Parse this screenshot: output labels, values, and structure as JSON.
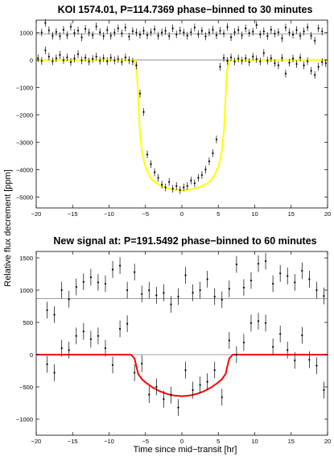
{
  "figure": {
    "ylabel": "Relative flux decrement [ppm]",
    "xlabel": "Time since mid−transit [hr]"
  },
  "colors": {
    "fit_top": "#ffff00",
    "fit_bottom": "#ff0000",
    "points": "#000000",
    "axes": "#000000",
    "reference": "#7f7f7f"
  },
  "chart_data": [
    {
      "type": "scatter",
      "title": "KOI 1574.01, P=114.7369 phase−binned to 30 minutes",
      "xlabel": "",
      "ylabel": "Relative flux decrement [ppm]",
      "xlim": [
        -20,
        20
      ],
      "ylim": [
        -5400,
        1450
      ],
      "xticks": [
        -20,
        -15,
        -10,
        -5,
        0,
        5,
        10,
        15,
        20
      ],
      "yticks": [
        -5000,
        -4000,
        -3000,
        -2000,
        -1000,
        0,
        1000
      ],
      "grid": false,
      "reference_lines": [
        0,
        950
      ],
      "error_bar": 140,
      "offset": 950,
      "series": [
        {
          "role": "upper-offset",
          "x": [
            -19.25,
            -18.75,
            -18.25,
            -17.75,
            -17.25,
            -16.75,
            -16.25,
            -15.75,
            -15.25,
            -14.75,
            -14.25,
            -13.75,
            -13.25,
            -12.75,
            -12.25,
            -11.75,
            -11.25,
            -10.75,
            -10.25,
            -9.75,
            -9.25,
            -8.75,
            -8.25,
            -7.75,
            -7.25,
            -6.75,
            -6.25,
            -5.75,
            -5.25,
            -4.75,
            -4.25,
            -3.75,
            -3.25,
            -2.75,
            -2.25,
            -1.75,
            -1.25,
            -0.75,
            -0.25,
            0.25,
            0.75,
            1.25,
            1.75,
            2.25,
            2.75,
            3.25,
            3.75,
            4.25,
            4.75,
            5.25,
            5.75,
            6.25,
            6.75,
            7.25,
            7.75,
            8.25,
            8.75,
            9.25,
            9.75,
            10.25,
            10.75,
            11.25,
            11.75,
            12.25,
            12.75,
            13.25,
            13.75,
            14.25,
            14.75,
            15.25,
            15.75,
            16.25,
            16.75,
            17.25,
            17.75,
            18.25,
            18.75,
            19.25
          ],
          "y": [
            1000,
            1350,
            1080,
            880,
            1020,
            870,
            1100,
            900,
            1210,
            980,
            1070,
            820,
            1130,
            1000,
            900,
            1220,
            1010,
            870,
            1090,
            880,
            1000,
            1150,
            970,
            1180,
            850,
            1050,
            1000,
            920,
            1060,
            900,
            1010,
            1120,
            880,
            1000,
            1060,
            870,
            1150,
            930,
            1070,
            1000,
            880,
            1010,
            1180,
            940,
            1060,
            860,
            1000,
            1100,
            900,
            1060,
            960,
            1200,
            830,
            1010,
            1090,
            890,
            1150,
            980,
            1030,
            1270,
            930,
            1040,
            870,
            1100,
            960,
            1010,
            790,
            1180,
            1000,
            920,
            1090,
            880,
            1040,
            1190,
            880,
            700,
            1150,
            1040
          ]
        },
        {
          "role": "lower",
          "x": [
            -19.75,
            -19.25,
            -18.75,
            -18.25,
            -17.75,
            -17.25,
            -16.75,
            -16.25,
            -15.75,
            -15.25,
            -14.75,
            -14.25,
            -13.75,
            -13.25,
            -12.75,
            -12.25,
            -11.75,
            -11.25,
            -10.75,
            -10.25,
            -9.75,
            -9.25,
            -8.75,
            -8.25,
            -7.75,
            -7.25,
            -6.75,
            -6.25,
            -5.75,
            -5.25,
            -4.75,
            -4.25,
            -3.75,
            -3.25,
            -2.75,
            -2.25,
            -1.75,
            -1.25,
            -0.75,
            -0.25,
            0.25,
            0.75,
            1.25,
            1.75,
            2.25,
            2.75,
            3.25,
            3.75,
            4.25,
            4.75,
            5.25,
            5.75,
            6.25,
            6.75,
            7.25,
            7.75,
            8.25,
            8.75,
            9.25,
            9.75,
            10.25,
            10.75,
            11.25,
            11.75,
            12.25,
            12.75,
            13.25,
            13.75,
            14.25,
            14.75,
            15.25,
            15.75,
            16.25,
            16.75,
            17.25,
            17.75,
            18.25,
            18.75,
            19.25,
            19.75
          ],
          "y": [
            60,
            -40,
            350,
            120,
            -50,
            60,
            180,
            -10,
            90,
            -80,
            50,
            210,
            -20,
            80,
            -60,
            40,
            120,
            -30,
            60,
            -50,
            80,
            -20,
            30,
            -70,
            90,
            -10,
            -60,
            -200,
            -1230,
            -1900,
            -3450,
            -3800,
            -4100,
            -4300,
            -4550,
            -4650,
            -4450,
            -4700,
            -4600,
            -4750,
            -4650,
            -4600,
            -4400,
            -4500,
            -4300,
            -4200,
            -4000,
            -3700,
            -3400,
            -2900,
            -250,
            70,
            -40,
            90,
            -60,
            50,
            -30,
            60,
            -80,
            120,
            30,
            -60,
            250,
            -30,
            60,
            -120,
            -200,
            70,
            -500,
            -100,
            50,
            -150,
            80,
            -200,
            -50,
            -400,
            -550,
            -250,
            -80,
            -120
          ]
        }
      ],
      "model": {
        "name": "",
        "x": [
          -20,
          -7,
          -6.5,
          -6.2,
          -6,
          -5.8,
          -5.5,
          -5.2,
          -5,
          -4.5,
          -4,
          -3,
          -2,
          -1,
          0,
          1,
          2,
          3,
          4,
          4.5,
          5,
          5.2,
          5.5,
          5.8,
          6,
          6.2,
          6.5,
          7,
          20
        ],
        "y": [
          0,
          0,
          -30,
          -400,
          -1300,
          -2500,
          -3300,
          -3700,
          -3900,
          -4200,
          -4400,
          -4580,
          -4680,
          -4730,
          -4750,
          -4730,
          -4680,
          -4580,
          -4400,
          -4200,
          -3900,
          -3700,
          -3300,
          -2500,
          -1300,
          -400,
          -30,
          0,
          0
        ]
      }
    },
    {
      "type": "scatter",
      "title": "New signal at: P=191.5492 phase−binned to 60 minutes",
      "xlabel": "Time since mid−transit [hr]",
      "ylabel": "Relative flux decrement [ppm]",
      "xlim": [
        -20,
        20
      ],
      "ylim": [
        -1250,
        1600
      ],
      "xticks": [
        -20,
        -15,
        -10,
        -5,
        0,
        5,
        10,
        15,
        20
      ],
      "yticks": [
        -1000,
        -500,
        0,
        500,
        1000,
        1500
      ],
      "grid": false,
      "reference_lines": [
        0,
        870
      ],
      "error_bar": 130,
      "offset": 870,
      "series": [
        {
          "role": "upper-offset",
          "x": [
            -18.5,
            -17.5,
            -16.5,
            -15.5,
            -14.5,
            -13.5,
            -12.5,
            -11.5,
            -10.5,
            -9.5,
            -8.5,
            -7.5,
            -6.5,
            -5.5,
            -4.5,
            -3.5,
            -2.5,
            -1.5,
            -0.5,
            0.5,
            1.5,
            2.5,
            3.5,
            4.5,
            5.5,
            6.5,
            7.5,
            8.5,
            9.5,
            10.5,
            11.5,
            12.5,
            13.5,
            14.5,
            15.5,
            16.5,
            17.5,
            18.5,
            19.5
          ],
          "y": [
            690,
            620,
            1000,
            860,
            1050,
            1130,
            1200,
            1120,
            1100,
            1320,
            1380,
            1000,
            1280,
            940,
            1000,
            920,
            960,
            780,
            900,
            1230,
            960,
            1000,
            1170,
            900,
            850,
            1020,
            1400,
            1040,
            1150,
            1410,
            1450,
            1100,
            1260,
            1220,
            1120,
            1300,
            1170,
            1000,
            910
          ]
        },
        {
          "role": "lower",
          "x": [
            -18.5,
            -17.5,
            -16.5,
            -15.5,
            -14.5,
            -13.5,
            -12.5,
            -11.5,
            -10.5,
            -9.5,
            -8.5,
            -7.5,
            -6.5,
            -5.5,
            -4.5,
            -3.5,
            -2.5,
            -1.5,
            -0.5,
            0.5,
            1.5,
            2.5,
            3.5,
            4.5,
            5.5,
            6.5,
            7.5,
            8.5,
            9.5,
            10.5,
            11.5,
            12.5,
            13.5,
            14.5,
            15.5,
            16.5,
            17.5,
            18.5,
            19.5
          ],
          "y": [
            -150,
            -280,
            100,
            70,
            290,
            360,
            240,
            290,
            100,
            -160,
            400,
            480,
            -280,
            -140,
            -620,
            -500,
            -690,
            -630,
            -820,
            -240,
            -550,
            -470,
            -420,
            -240,
            -660,
            220,
            0,
            190,
            490,
            520,
            490,
            120,
            320,
            70,
            -90,
            300,
            -80,
            -170,
            -550
          ]
        }
      ],
      "model": {
        "name": "",
        "x": [
          -20,
          -7,
          -6.5,
          -6,
          -5.5,
          -5,
          -4,
          -3,
          -2,
          -1,
          0,
          1,
          2,
          3,
          4,
          5,
          5.5,
          6,
          6.5,
          7,
          20
        ],
        "y": [
          0,
          0,
          -60,
          -300,
          -380,
          -430,
          -510,
          -570,
          -610,
          -635,
          -645,
          -635,
          -610,
          -570,
          -510,
          -430,
          -380,
          -300,
          -60,
          0,
          0
        ]
      }
    }
  ]
}
